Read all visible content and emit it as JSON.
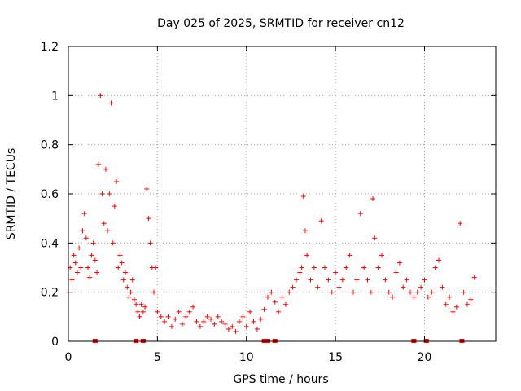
{
  "chart_data": {
    "type": "scatter",
    "title": "Day 025 of 2025, SRMTID for receiver cn12",
    "xlabel": "GPS time / hours",
    "ylabel": "SRMTID / TECUs",
    "xlim": [
      0,
      24
    ],
    "ylim": [
      0,
      1.2
    ],
    "xticks": [
      0,
      5,
      10,
      15,
      20
    ],
    "xtick_labels": [
      "0",
      "5",
      "10",
      "15",
      "20"
    ],
    "yticks": [
      0,
      0.2,
      0.4,
      0.6,
      0.8,
      1.0,
      1.2
    ],
    "ytick_labels": [
      "0",
      "0.2",
      "0.4",
      "0.6",
      "0.8",
      "1",
      "1.2"
    ],
    "grid": true,
    "marker": "+",
    "color": "#ff0000",
    "series": [
      {
        "name": "SRMTID",
        "x": [
          0.0,
          0.1,
          0.2,
          0.3,
          0.4,
          0.5,
          0.6,
          0.7,
          0.8,
          0.9,
          1.0,
          1.1,
          1.2,
          1.3,
          1.4,
          1.5,
          1.6,
          1.7,
          1.8,
          1.9,
          2.0,
          2.1,
          2.2,
          2.3,
          2.4,
          2.5,
          2.6,
          2.7,
          2.8,
          2.9,
          3.0,
          3.1,
          3.2,
          3.3,
          3.4,
          3.5,
          3.6,
          3.7,
          3.8,
          3.9,
          4.0,
          4.1,
          4.2,
          4.3,
          4.4,
          4.5,
          4.6,
          4.7,
          4.8,
          4.9,
          5.0,
          5.2,
          5.4,
          5.6,
          5.8,
          6.0,
          6.2,
          6.4,
          6.6,
          6.8,
          7.0,
          7.2,
          7.4,
          7.6,
          7.8,
          8.0,
          8.2,
          8.4,
          8.6,
          8.8,
          9.0,
          9.2,
          9.4,
          9.6,
          9.8,
          10.0,
          10.2,
          10.4,
          10.6,
          10.8,
          11.0,
          11.2,
          11.4,
          11.6,
          11.8,
          12.0,
          12.2,
          12.4,
          12.6,
          12.8,
          13.0,
          13.1,
          13.2,
          13.3,
          13.4,
          13.6,
          13.8,
          14.0,
          14.2,
          14.4,
          14.6,
          14.8,
          15.0,
          15.2,
          15.4,
          15.6,
          15.8,
          16.0,
          16.2,
          16.4,
          16.6,
          16.8,
          17.0,
          17.1,
          17.2,
          17.4,
          17.6,
          17.8,
          18.0,
          18.2,
          18.4,
          18.6,
          18.8,
          19.0,
          19.2,
          19.4,
          19.6,
          19.8,
          20.0,
          20.2,
          20.4,
          20.6,
          20.8,
          21.0,
          21.2,
          21.4,
          21.6,
          21.8,
          22.0,
          22.2,
          22.4,
          22.6,
          22.8
        ],
        "y": [
          0.2,
          0.3,
          0.25,
          0.35,
          0.32,
          0.28,
          0.38,
          0.3,
          0.45,
          0.52,
          0.42,
          0.3,
          0.26,
          0.35,
          0.4,
          0.33,
          0.28,
          0.72,
          1.0,
          0.6,
          0.48,
          0.7,
          0.45,
          0.6,
          0.97,
          0.4,
          0.55,
          0.65,
          0.3,
          0.35,
          0.32,
          0.25,
          0.28,
          0.22,
          0.18,
          0.2,
          0.25,
          0.17,
          0.15,
          0.12,
          0.1,
          0.15,
          0.12,
          0.14,
          0.62,
          0.5,
          0.4,
          0.3,
          0.2,
          0.3,
          0.12,
          0.1,
          0.08,
          0.1,
          0.06,
          0.09,
          0.12,
          0.07,
          0.1,
          0.12,
          0.14,
          0.08,
          0.06,
          0.08,
          0.1,
          0.09,
          0.07,
          0.1,
          0.08,
          0.07,
          0.05,
          0.06,
          0.04,
          0.08,
          0.1,
          0.06,
          0.12,
          0.08,
          0.05,
          0.09,
          0.13,
          0.18,
          0.2,
          0.16,
          0.12,
          0.18,
          0.15,
          0.2,
          0.22,
          0.25,
          0.28,
          0.3,
          0.59,
          0.45,
          0.35,
          0.25,
          0.3,
          0.22,
          0.49,
          0.3,
          0.25,
          0.2,
          0.28,
          0.22,
          0.25,
          0.3,
          0.35,
          0.2,
          0.25,
          0.52,
          0.3,
          0.25,
          0.2,
          0.58,
          0.42,
          0.3,
          0.35,
          0.25,
          0.2,
          0.18,
          0.28,
          0.32,
          0.22,
          0.25,
          0.2,
          0.18,
          0.2,
          0.22,
          0.25,
          0.18,
          0.2,
          0.3,
          0.33,
          0.22,
          0.15,
          0.18,
          0.12,
          0.14,
          0.48,
          0.2,
          0.15,
          0.17,
          0.26
        ],
        "gaps_x": [
          1.5,
          3.8,
          4.2,
          11.0,
          11.2,
          11.6,
          19.4,
          20.1,
          22.1
        ]
      }
    ]
  }
}
